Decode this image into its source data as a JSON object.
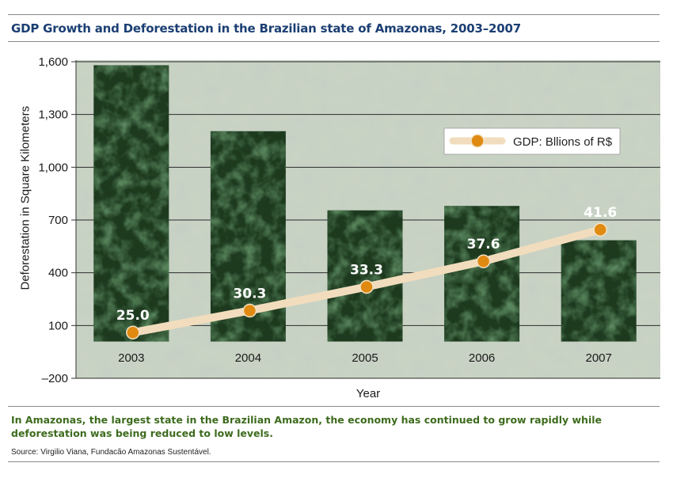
{
  "header": {
    "title": "GDP Growth and Deforestation in the Brazilian state of Amazonas, 2003–2007"
  },
  "footer": {
    "caption": "In Amazonas, the largest state in the Brazilian Amazon, the economy has continued to grow rapidly while deforestation was being reduced to low levels.",
    "source": "Source: Virgilio Viana, Fundacão Amazonas Sustentável."
  },
  "colors": {
    "title": "#1b3f73",
    "caption": "#3d6b1d",
    "forest_dark": "#1d3a1f",
    "forest_light": "#b9c6b2",
    "gdp_line": "#f1ddbd",
    "gdp_marker": "#e08a12"
  },
  "chart_data": {
    "type": "bar",
    "title": "GDP Growth and Deforestation in the Brazilian state of Amazonas, 2003–2007",
    "xlabel": "Year",
    "ylabel": "Deforestation in Square Kilometers",
    "categories": [
      "2003",
      "2004",
      "2005",
      "2006",
      "2007"
    ],
    "ylim": [
      -200,
      1600
    ],
    "yticks": [
      1600,
      1300,
      1000,
      700,
      400,
      100,
      -200
    ],
    "ytick_labels": [
      "1,600",
      "1,300",
      "1,000",
      "700",
      "400",
      "100",
      "–200"
    ],
    "bar_baseline": 0,
    "grid": true,
    "legend": "top-right",
    "series": [
      {
        "kind": "bar",
        "values": [
          1580,
          1205,
          755,
          780,
          585
        ]
      },
      {
        "kind": "line",
        "name": "GDP: Bllions of R$",
        "values": [
          25.0,
          30.3,
          33.3,
          37.6,
          41.6
        ],
        "labels": [
          "25.0",
          "30.3",
          "33.3",
          "37.6",
          "41.6"
        ],
        "plotted_on_deforestation_axis": [
          60,
          185,
          320,
          465,
          645
        ]
      }
    ]
  }
}
